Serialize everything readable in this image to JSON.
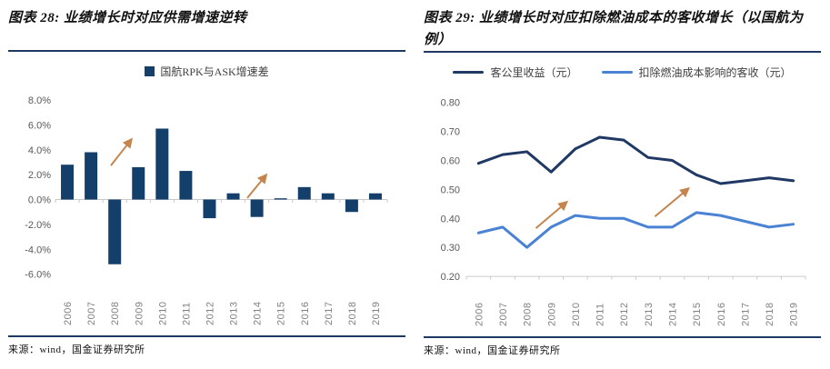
{
  "panels": [
    {
      "title": "图表 28: 业绩增长时对应供需增速逆转",
      "source": "来源：wind，国金证券研究所"
    },
    {
      "title": "图表 29: 业绩增长时对应扣除燃油成本的客收增长（以国航为例）",
      "source": "来源：wind，国金证券研究所"
    }
  ],
  "colors": {
    "rule_navy": "#1F3864",
    "bar_blue": "#153F6B",
    "dark_line": "#1F3864",
    "light_line": "#4A82D4",
    "arrow_tan": "#C4854E",
    "axis_gray": "#C9C9C9",
    "ytick_gray": "#595959",
    "xtick_gray": "#808080"
  },
  "chart_data": [
    {
      "type": "bar",
      "title": "国航RPK与ASK增速差",
      "categories": [
        "2006",
        "2007",
        "2008",
        "2009",
        "2010",
        "2011",
        "2012",
        "2013",
        "2014",
        "2015",
        "2016",
        "2017",
        "2018",
        "2019"
      ],
      "values": [
        2.8,
        3.8,
        -5.2,
        2.6,
        5.7,
        2.3,
        -1.5,
        0.5,
        -1.4,
        0.1,
        1.0,
        0.5,
        -1.0,
        0.5
      ],
      "unit": "%",
      "ylim": [
        -6.0,
        8.0
      ],
      "ytick_step": 2.0,
      "ytick_format": "percent1",
      "bar_color": "#153F6B",
      "grid": false,
      "legend_position": "top-center",
      "annotations": [
        {
          "kind": "arrow",
          "x1": 0.167,
          "y1": 0.376,
          "x2": 0.23,
          "y2": 0.224
        },
        {
          "kind": "arrow",
          "x1": 0.578,
          "y1": 0.563,
          "x2": 0.636,
          "y2": 0.428
        }
      ]
    },
    {
      "type": "line",
      "categories": [
        "2006",
        "2007",
        "2008",
        "2009",
        "2010",
        "2011",
        "2012",
        "2013",
        "2014",
        "2015",
        "2016",
        "2017",
        "2018",
        "2019"
      ],
      "series": [
        {
          "name": "客公里收益（元）",
          "color": "#1F3864",
          "values": [
            0.59,
            0.62,
            0.63,
            0.56,
            0.64,
            0.68,
            0.67,
            0.61,
            0.6,
            0.55,
            0.52,
            0.53,
            0.54,
            0.53
          ]
        },
        {
          "name": "扣除燃油成本影响的客收（元）",
          "color": "#4A82D4",
          "values": [
            0.35,
            0.37,
            0.3,
            0.37,
            0.41,
            0.4,
            0.4,
            0.37,
            0.37,
            0.42,
            0.41,
            0.39,
            0.37,
            0.38
          ]
        }
      ],
      "ylim": [
        0.2,
        0.8
      ],
      "ytick_step": 0.1,
      "ytick_format": "fixed2",
      "grid": false,
      "legend_position": "top-center",
      "annotations": [
        {
          "kind": "arrow",
          "x1": 0.205,
          "y1": 0.723,
          "x2": 0.297,
          "y2": 0.571
        },
        {
          "kind": "arrow",
          "x1": 0.556,
          "y1": 0.656,
          "x2": 0.656,
          "y2": 0.493
        }
      ]
    }
  ]
}
